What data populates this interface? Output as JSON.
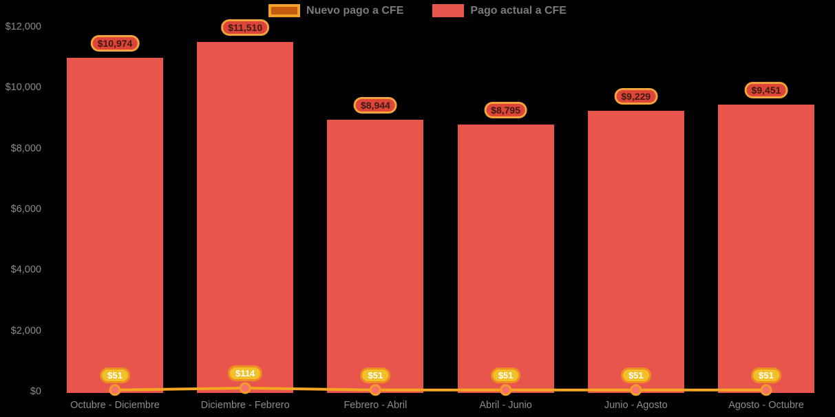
{
  "chart_data": {
    "type": "bar",
    "categories": [
      "Octubre - Diciembre",
      "Diciembre - Febrero",
      "Febrero - Abril",
      "Abril - Junio",
      "Junio - Agosto",
      "Agosto - Octubre"
    ],
    "series": [
      {
        "name": "Nuevo pago a CFE",
        "type": "line",
        "values": [
          51,
          114,
          51,
          51,
          51,
          51
        ],
        "labels": [
          "$51",
          "$114",
          "$51",
          "$51",
          "$51",
          "$51"
        ],
        "color": "#F5A623"
      },
      {
        "name": "Pago actual a CFE",
        "type": "bar",
        "values": [
          10974,
          11510,
          8944,
          8795,
          9229,
          9451
        ],
        "labels": [
          "$10,974",
          "$11,510",
          "$8,944",
          "$8,795",
          "$9,229",
          "$9,451"
        ],
        "color": "#E8554C"
      }
    ],
    "title": "",
    "xlabel": "",
    "ylabel": "",
    "ylim": [
      0,
      12000
    ],
    "y_ticks": [
      {
        "value": 0,
        "label": "$0"
      },
      {
        "value": 2000,
        "label": "$2,000"
      },
      {
        "value": 4000,
        "label": "$4,000"
      },
      {
        "value": 6000,
        "label": "$6,000"
      },
      {
        "value": 8000,
        "label": "$8,000"
      },
      {
        "value": 10000,
        "label": "$10,000"
      },
      {
        "value": 12000,
        "label": "$12,000"
      }
    ],
    "grid": false,
    "legend_position": "top"
  },
  "colors": {
    "background": "#000000",
    "bar": "#E8554C",
    "line": "#F5A623",
    "marker_fill": "#F4746C",
    "marker_stroke": "#F59C28",
    "bar_badge_bg": "#DF4438",
    "bar_badge_border": "#F2A33C",
    "bar_badge_text": "#3A1B14",
    "point_badge_bg": "#F2C129",
    "point_badge_border": "#EE8D20",
    "point_badge_text": "#FFFFFF",
    "legend_nuevo_fill": "#C35A10",
    "legend_nuevo_border": "#F2A12B",
    "legend_actual_fill": "#E8554C",
    "legend_text": "#7B7B7B",
    "axis_text": "#8C8C8C"
  }
}
